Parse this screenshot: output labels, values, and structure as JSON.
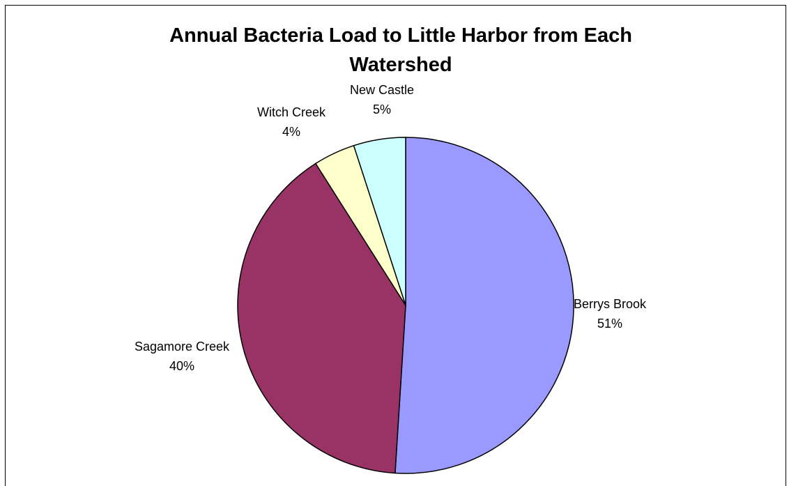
{
  "chart_data": {
    "type": "pie",
    "title": "Annual Bacteria Load to Little Harbor from Each Watershed",
    "slices": [
      {
        "label": "Berrys Brook",
        "value": 51,
        "display": "51%",
        "color": "#9999ff"
      },
      {
        "label": "Sagamore Creek",
        "value": 40,
        "display": "40%",
        "color": "#993366"
      },
      {
        "label": "Witch Creek",
        "value": 4,
        "display": "4%",
        "color": "#ffffcc"
      },
      {
        "label": "New Castle",
        "value": 5,
        "display": "5%",
        "color": "#ccffff"
      }
    ],
    "legend": "none",
    "labels": "outside"
  }
}
